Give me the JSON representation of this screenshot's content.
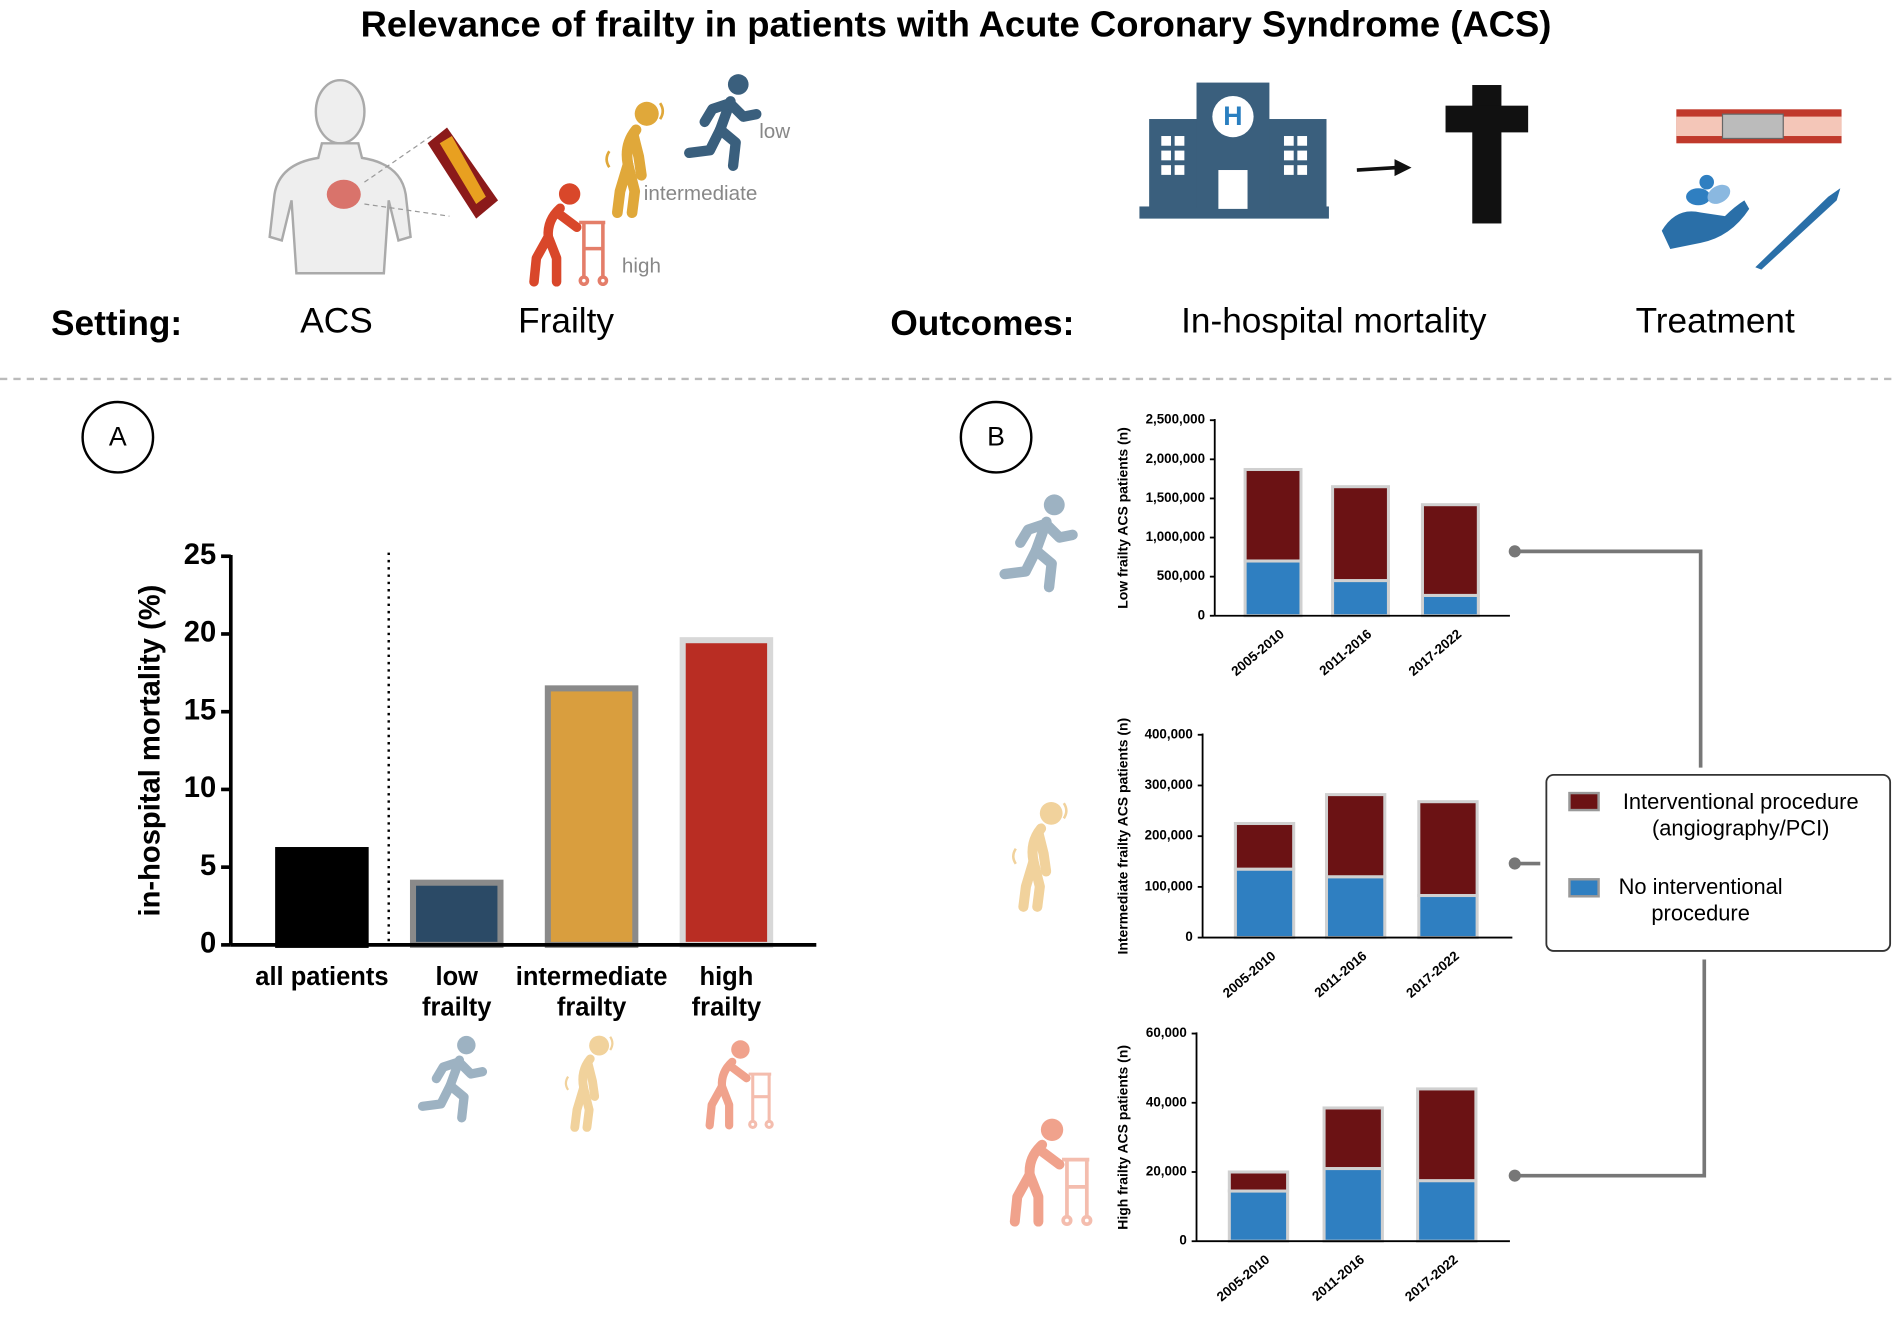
{
  "title": "Relevance of frailty in patients with Acute Coronary Syndrome (ACS)",
  "header": {
    "setting_label": "Setting:",
    "setting_items": [
      "ACS",
      "Frailty"
    ],
    "outcomes_label": "Outcomes:",
    "outcome_items": [
      "In-hospital mortality",
      "Treatment"
    ],
    "frailty_levels": [
      "low",
      "intermediate",
      "high"
    ]
  },
  "panels": [
    "A",
    "B"
  ],
  "chart_data": [
    {
      "type": "bar",
      "ylabel": "in-hospital mortality (%)",
      "categories": [
        "all patients",
        "low\nfrailty",
        "intermediate\nfrailty",
        "high\nfrailty"
      ],
      "values": [
        6.1,
        4.0,
        16.5,
        19.6
      ],
      "colors": [
        "#000000",
        "#2b4a66",
        "#d99e3e",
        "#b92d23"
      ],
      "edgecolors": [
        "#000000",
        "#8a8a8a",
        "#8a8a8a",
        "#d8d8d8"
      ],
      "ylim": [
        0,
        25
      ],
      "yticks": [
        0,
        5,
        10,
        15,
        20,
        25
      ]
    },
    {
      "type": "stacked_bar",
      "ylabel": "Low frailty ACS patients (n)",
      "categories": [
        "2005-2010",
        "2011-2016",
        "2017-2022"
      ],
      "series": [
        {
          "name": "No interventional\nprocedure",
          "color": "#2f7fc1",
          "values": [
            700000,
            450000,
            260000
          ]
        },
        {
          "name": "Interventional procedure\n(angiography/PCI)",
          "color": "#6b1214",
          "values": [
            1170000,
            1200000,
            1160000
          ]
        }
      ],
      "ylim": [
        0,
        2500000
      ],
      "yticks": [
        0,
        {
          "value": 500000,
          "label": "500,000"
        },
        {
          "value": 1000000,
          "label": "1,000,000"
        },
        {
          "value": 1500000,
          "label": "1,500,000"
        },
        {
          "value": 2000000,
          "label": "2,000,000"
        },
        {
          "value": 2500000,
          "label": "2,500,000"
        }
      ]
    },
    {
      "type": "stacked_bar",
      "ylabel": "Intermediate frailty ACS patients (n)",
      "categories": [
        "2005-2010",
        "2011-2016",
        "2017-2022"
      ],
      "series": [
        {
          "color": "#2f7fc1",
          "values": [
            135000,
            120000,
            83000
          ]
        },
        {
          "color": "#6b1214",
          "values": [
            90000,
            162000,
            185000
          ]
        }
      ],
      "ylim": [
        0,
        400000
      ],
      "yticks": [
        0,
        {
          "value": 100000,
          "label": "100,000"
        },
        {
          "value": 200000,
          "label": "200,000"
        },
        {
          "value": 300000,
          "label": "300,000"
        },
        {
          "value": 400000,
          "label": "400,000"
        }
      ]
    },
    {
      "type": "stacked_bar",
      "ylabel": "High frailty ACS patients (n)",
      "categories": [
        "2005-2010",
        "2011-2016",
        "2017-2022"
      ],
      "series": [
        {
          "color": "#2f7fc1",
          "values": [
            14500,
            21000,
            17500
          ]
        },
        {
          "color": "#6b1214",
          "values": [
            5500,
            17500,
            26500
          ]
        }
      ],
      "ylim": [
        0,
        60000
      ],
      "yticks": [
        0,
        {
          "value": 20000,
          "label": "20,000"
        },
        {
          "value": 40000,
          "label": "40,000"
        },
        {
          "value": 60000,
          "label": "60,000"
        }
      ]
    }
  ]
}
